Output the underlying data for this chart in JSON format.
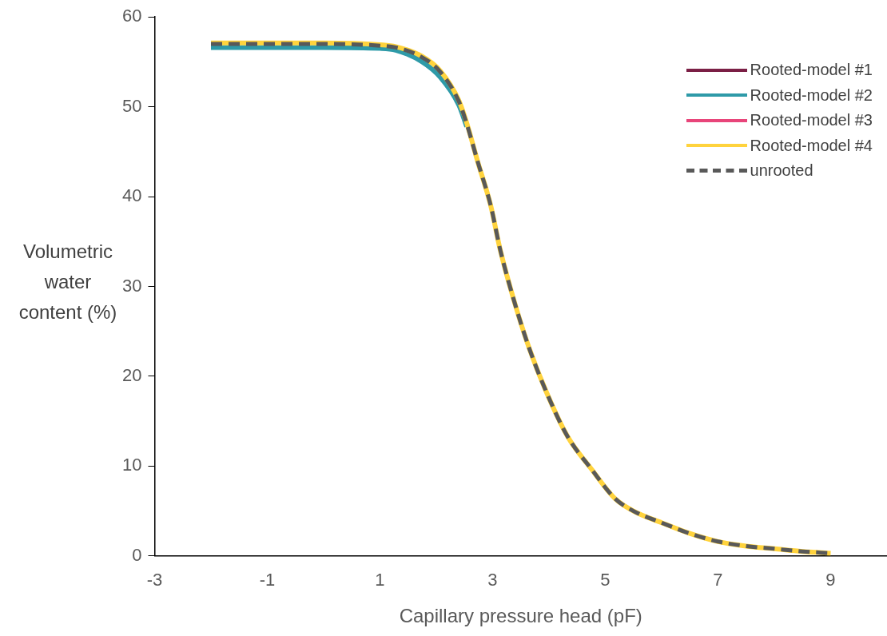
{
  "chart_data": {
    "type": "line",
    "xlabel": "Capillary pressure head (pF)",
    "ylabel": "Volumetric water content (%)",
    "x": [
      -2,
      -1,
      0,
      1,
      1.28,
      1.75,
      2.07,
      2.4,
      2.54,
      2.73,
      2.97,
      3.13,
      3.39,
      3.65,
      3.95,
      4.33,
      4.75,
      5.17,
      5.5,
      6,
      6.5,
      7,
      7.5,
      8,
      8.5,
      9
    ],
    "xlim": [
      -3,
      10
    ],
    "xticks": [
      -3,
      -1,
      1,
      3,
      5,
      7,
      9
    ],
    "ylim": [
      0,
      60
    ],
    "yticks": [
      0,
      10,
      20,
      30,
      40,
      50,
      60
    ],
    "grid": false,
    "legend": "top right",
    "marker": "none",
    "series": [
      {
        "name": "Rooted-model #1",
        "color": "#7b1f45",
        "values": [
          null,
          null,
          null,
          null,
          null,
          null,
          null,
          null,
          null,
          null,
          null,
          null,
          null,
          null,
          null,
          null,
          null,
          null,
          null,
          null,
          null,
          null,
          null,
          null,
          null,
          null
        ]
      },
      {
        "name": "Rooted-model #2",
        "color": "#2e9aa8",
        "values": [
          56.6,
          56.6,
          56.6,
          56.5,
          56.3,
          55,
          53.3,
          50.2,
          47.8,
          null,
          null,
          null,
          null,
          null,
          null,
          null,
          null,
          null,
          null,
          null,
          null,
          null,
          null,
          null,
          null,
          null
        ]
      },
      {
        "name": "Rooted-model #3",
        "color": "#e8457a",
        "values": [
          null,
          null,
          null,
          null,
          null,
          null,
          null,
          null,
          null,
          null,
          null,
          null,
          null,
          null,
          null,
          null,
          null,
          null,
          null,
          null,
          null,
          null,
          null,
          null,
          null,
          null
        ]
      },
      {
        "name": "Rooted-model #4",
        "color": "#ffd33d",
        "values": [
          57.1,
          57.1,
          57.1,
          56.9,
          56.7,
          55.6,
          54,
          50.7,
          48.2,
          44,
          38.9,
          34.2,
          28.2,
          23.1,
          18.3,
          13.3,
          9.7,
          6.4,
          5,
          3.7,
          2.5,
          1.6,
          1.1,
          0.8,
          0.5,
          0.3
        ]
      },
      {
        "name": "unrooted",
        "color": "#595959",
        "line_style": "dashed",
        "values": [
          57,
          57,
          57,
          56.8,
          56.6,
          55.5,
          53.9,
          50.6,
          48.1,
          44,
          38.9,
          34.2,
          28.2,
          23.1,
          18.3,
          13.3,
          9.7,
          6.4,
          5,
          3.7,
          2.5,
          1.6,
          1.1,
          0.8,
          0.5,
          0.3
        ]
      }
    ]
  }
}
